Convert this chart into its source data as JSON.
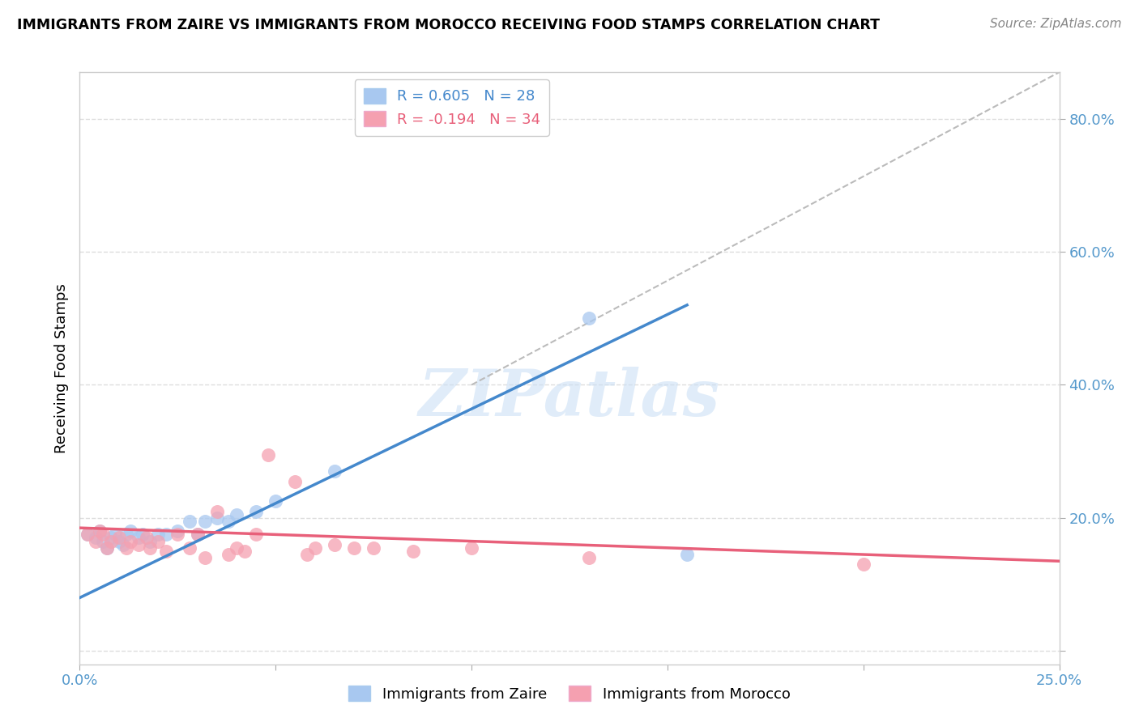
{
  "title": "IMMIGRANTS FROM ZAIRE VS IMMIGRANTS FROM MOROCCO RECEIVING FOOD STAMPS CORRELATION CHART",
  "source": "Source: ZipAtlas.com",
  "ylabel": "Receiving Food Stamps",
  "xlim": [
    0.0,
    0.25
  ],
  "ylim": [
    -0.02,
    0.87
  ],
  "x_ticks": [
    0.0,
    0.05,
    0.1,
    0.15,
    0.2,
    0.25
  ],
  "y_ticks": [
    0.0,
    0.2,
    0.4,
    0.6,
    0.8
  ],
  "zaire_R": 0.605,
  "zaire_N": 28,
  "morocco_R": -0.194,
  "morocco_N": 34,
  "zaire_color": "#a8c8f0",
  "morocco_color": "#f5a0b0",
  "zaire_line_color": "#4488cc",
  "morocco_line_color": "#e8607a",
  "trend_line_color": "#bbbbbb",
  "background_color": "#ffffff",
  "watermark": "ZIPatlas",
  "zaire_scatter_x": [
    0.002,
    0.004,
    0.005,
    0.006,
    0.007,
    0.008,
    0.009,
    0.01,
    0.011,
    0.012,
    0.013,
    0.015,
    0.016,
    0.018,
    0.02,
    0.022,
    0.025,
    0.028,
    0.03,
    0.032,
    0.035,
    0.038,
    0.04,
    0.045,
    0.05,
    0.065,
    0.13,
    0.155
  ],
  "zaire_scatter_y": [
    0.175,
    0.17,
    0.18,
    0.165,
    0.155,
    0.17,
    0.175,
    0.165,
    0.16,
    0.175,
    0.18,
    0.17,
    0.175,
    0.165,
    0.175,
    0.175,
    0.18,
    0.195,
    0.175,
    0.195,
    0.2,
    0.195,
    0.205,
    0.21,
    0.225,
    0.27,
    0.5,
    0.145
  ],
  "morocco_scatter_x": [
    0.002,
    0.004,
    0.005,
    0.006,
    0.007,
    0.008,
    0.01,
    0.012,
    0.013,
    0.015,
    0.017,
    0.018,
    0.02,
    0.022,
    0.025,
    0.028,
    0.03,
    0.032,
    0.035,
    0.038,
    0.04,
    0.042,
    0.045,
    0.048,
    0.055,
    0.058,
    0.06,
    0.065,
    0.07,
    0.075,
    0.085,
    0.1,
    0.13,
    0.2
  ],
  "morocco_scatter_y": [
    0.175,
    0.165,
    0.18,
    0.175,
    0.155,
    0.165,
    0.17,
    0.155,
    0.165,
    0.16,
    0.17,
    0.155,
    0.165,
    0.15,
    0.175,
    0.155,
    0.175,
    0.14,
    0.21,
    0.145,
    0.155,
    0.15,
    0.175,
    0.295,
    0.255,
    0.145,
    0.155,
    0.16,
    0.155,
    0.155,
    0.15,
    0.155,
    0.14,
    0.13
  ],
  "zaire_line_x": [
    0.0,
    0.155
  ],
  "zaire_line_y": [
    0.08,
    0.52
  ],
  "morocco_line_x": [
    0.0,
    0.25
  ],
  "morocco_line_y": [
    0.185,
    0.135
  ],
  "diag_line_x": [
    0.1,
    0.25
  ],
  "diag_line_y": [
    0.4,
    0.87
  ]
}
